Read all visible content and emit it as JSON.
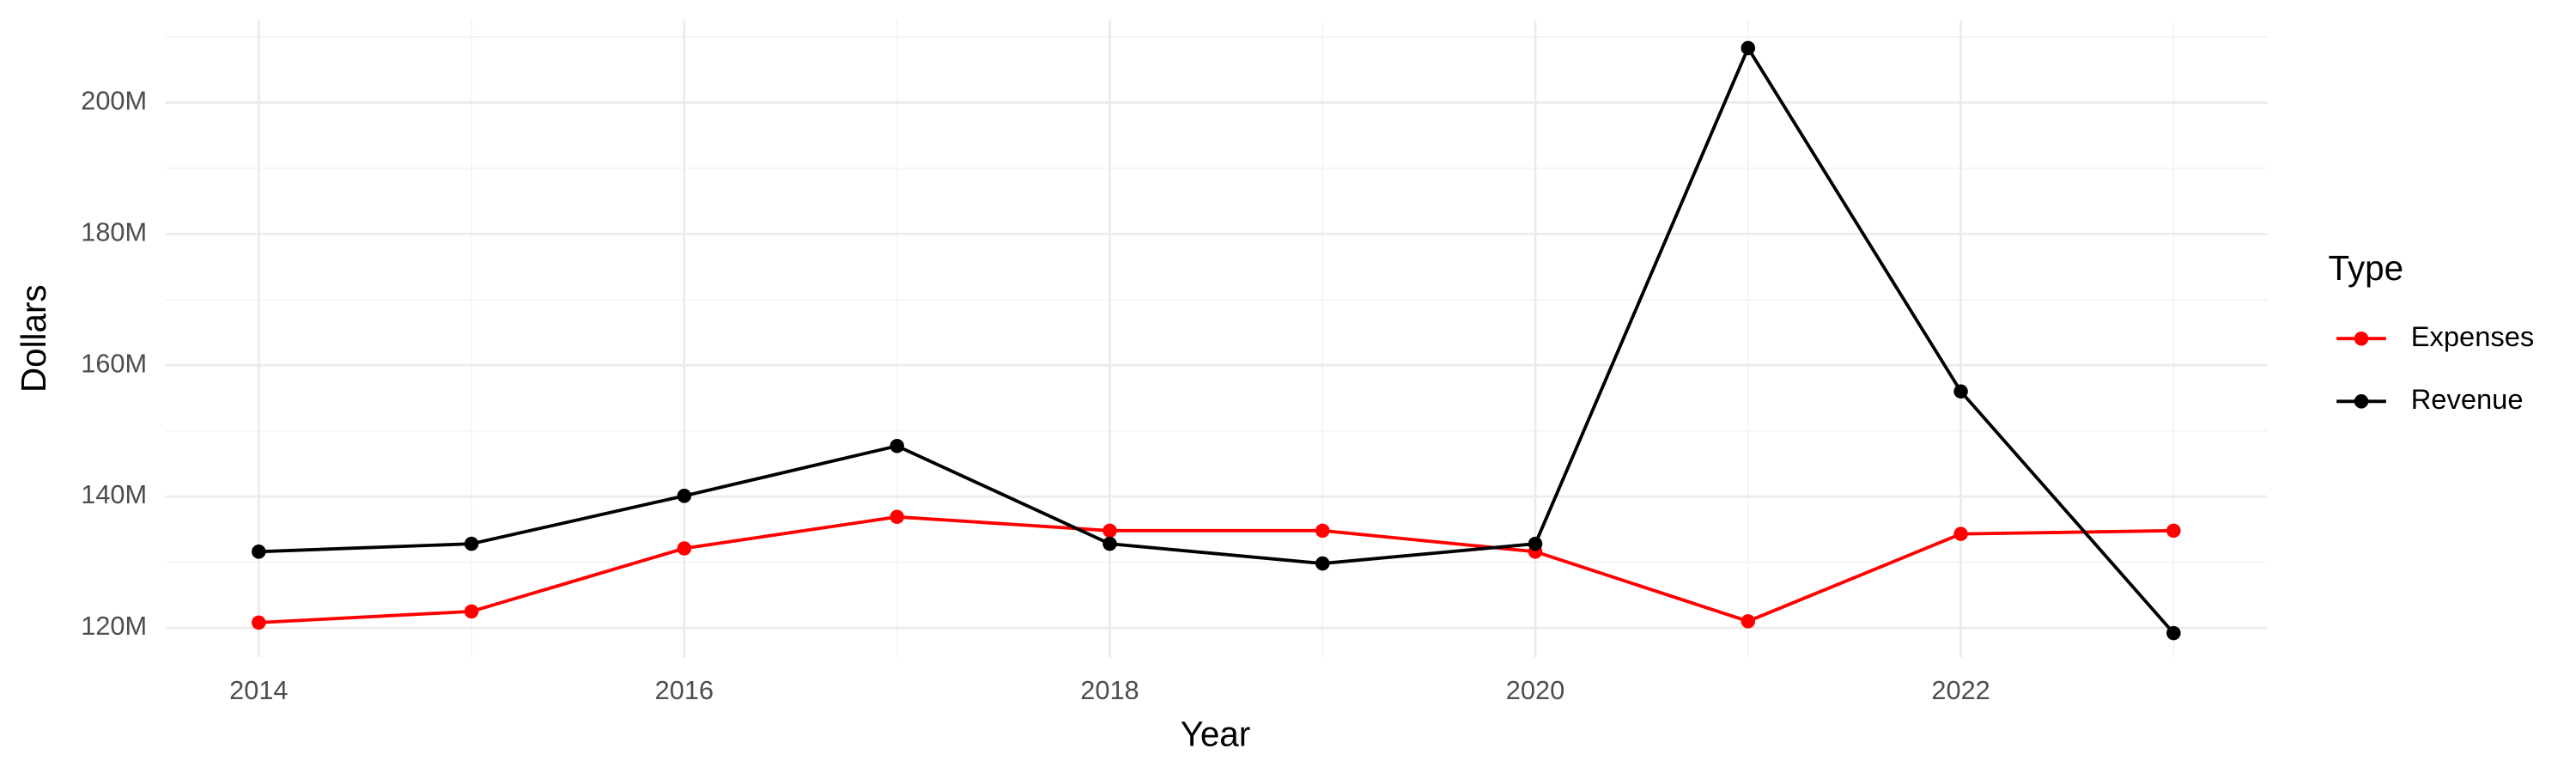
{
  "chart_data": {
    "type": "line",
    "x_label": "Year",
    "y_label": "Dollars",
    "legend_title": "Type",
    "legend_position": "right",
    "grid": true,
    "x": [
      2014,
      2015,
      2016,
      2017,
      2018,
      2019,
      2020,
      2021,
      2022,
      2023
    ],
    "series": [
      {
        "name": "Expenses",
        "color": "#ff0000",
        "values": [
          120800000,
          122500000,
          132100000,
          136900000,
          134800000,
          134800000,
          131600000,
          121000000,
          134300000,
          134800000
        ]
      },
      {
        "name": "Revenue",
        "color": "#000000",
        "values": [
          131600000,
          132800000,
          140100000,
          147700000,
          132800000,
          129800000,
          132800000,
          208300000,
          156000000,
          119200000
        ]
      }
    ],
    "xlim": [
      2013.56,
      2023.44
    ],
    "xticks": [
      2014,
      2016,
      2018,
      2020,
      2022
    ],
    "ylim": [
      115500000,
      212600000
    ],
    "yticks": [
      {
        "value": 120000000,
        "label": "120M"
      },
      {
        "value": 140000000,
        "label": "140M"
      },
      {
        "value": 160000000,
        "label": "160M"
      },
      {
        "value": 180000000,
        "label": "180M"
      },
      {
        "value": 200000000,
        "label": "200M"
      }
    ]
  }
}
